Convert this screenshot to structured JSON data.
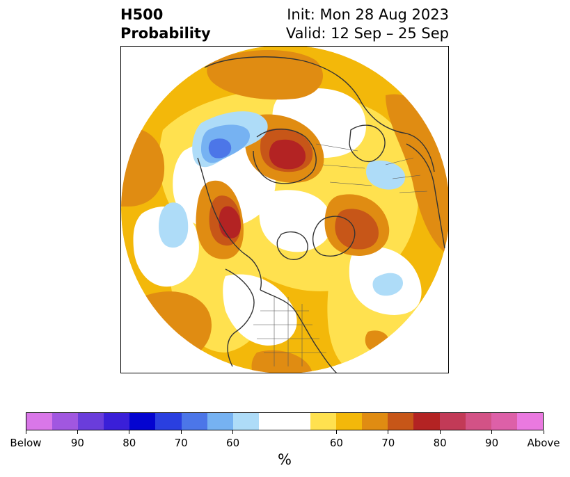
{
  "title": {
    "left_line1": "H500",
    "left_line2": "Probability",
    "right_line1": "Init: Mon 28 Aug 2023",
    "right_line2": "Valid: 12 Sep – 25 Sep"
  },
  "colorbar": {
    "unit": "%",
    "tick_labels": [
      "Below",
      "90",
      "80",
      "70",
      "60",
      "60",
      "70",
      "80",
      "90",
      "Above"
    ],
    "colors": [
      "#d977e8",
      "#a157e0",
      "#6a3ddb",
      "#3a1fd8",
      "#0404d0",
      "#2a3fe0",
      "#4c76e8",
      "#76b2f2",
      "#aedcf8",
      "#ffffff",
      "#ffffff",
      "#ffe14f",
      "#f3b80a",
      "#e08c12",
      "#c75618",
      "#b32323",
      "#c23a57",
      "#d35286",
      "#dd60a8",
      "#ea79e0"
    ]
  },
  "map": {
    "projection": "north-polar-stereographic",
    "field": "500 hPa height probability",
    "colors": {
      "yellow": "#ffe14f",
      "gold": "#f3b80a",
      "orange": "#e08c12",
      "dark_orange": "#c75618",
      "red": "#b32323",
      "light_blue": "#aedcf8",
      "blue": "#76b2f2",
      "mid_blue": "#4c76e8",
      "coast": "#333333"
    }
  }
}
